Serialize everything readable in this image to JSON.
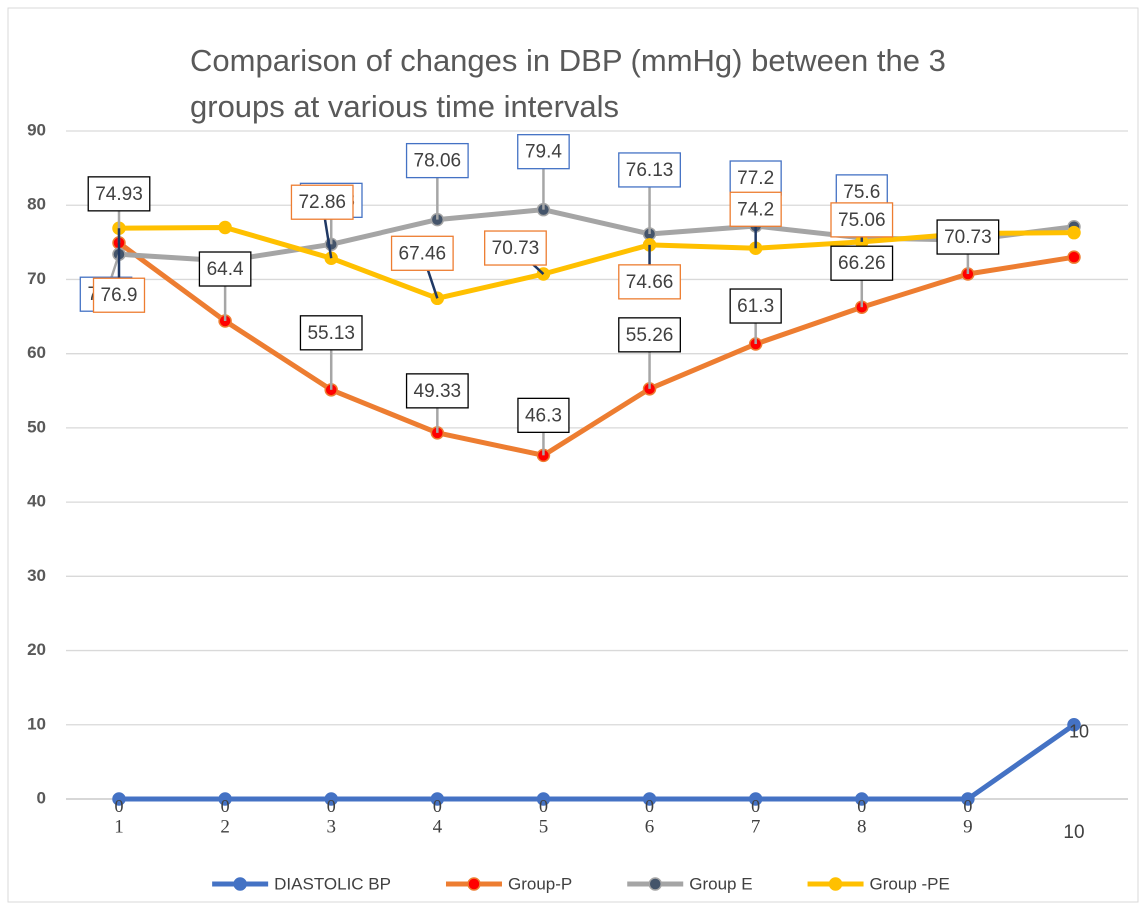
{
  "chart_data": {
    "type": "line",
    "title": "Comparison of changes in DBP (mmHg) between the 3 groups at various time intervals",
    "categories": [
      "1",
      "2",
      "3",
      "4",
      "5",
      "6",
      "7",
      "8",
      "9",
      "10"
    ],
    "ylim": [
      0,
      90
    ],
    "yticks": [
      0,
      10,
      20,
      30,
      40,
      50,
      60,
      70,
      80,
      90
    ],
    "grid": true,
    "legend": "bottom",
    "series": [
      {
        "name": "DIASTOLIC BP",
        "color": "#4472c4",
        "marker_color": "#4472c4",
        "label_border": null,
        "values": [
          0,
          0,
          0,
          0,
          0,
          0,
          0,
          0,
          0,
          10
        ],
        "value_labels": [
          "0",
          "0",
          "0",
          "0",
          "0",
          "0",
          "0",
          "0",
          "0",
          "10"
        ]
      },
      {
        "name": "Group-P",
        "color": "#ed7d31",
        "marker_color": "#ff0000",
        "label_border": "#000000",
        "values": [
          74.93,
          64.4,
          55.13,
          49.33,
          46.3,
          55.26,
          61.3,
          66.26,
          70.73,
          73
        ],
        "value_labels": [
          "74.93",
          "64.4",
          "55.13",
          "49.33",
          "46.3",
          "55.26",
          "61.3",
          "66.26",
          "70.73",
          null
        ]
      },
      {
        "name": "Group E",
        "color": "#a5a5a5",
        "marker_color": "#44546a",
        "label_border": "#4472c4",
        "values": [
          73.4,
          72.5,
          74.73,
          78.06,
          79.4,
          76.13,
          77.2,
          75.6,
          75.3,
          77.1
        ],
        "value_labels": [
          "73.4",
          null,
          "74.73",
          "78.06",
          "79.4",
          "76.13",
          "77.2",
          "75.6",
          null,
          null
        ]
      },
      {
        "name": "Group -PE",
        "color": "#ffc000",
        "marker_color": "#ffc000",
        "label_border": "#ed7d31",
        "values": [
          76.9,
          77,
          72.86,
          67.46,
          70.73,
          74.66,
          74.2,
          75.06,
          76.2,
          76.3
        ],
        "value_labels": [
          "76.9",
          null,
          "72.86",
          "67.46",
          "70.73",
          "74.66",
          "74.2",
          "75.06",
          null,
          null
        ]
      }
    ]
  }
}
